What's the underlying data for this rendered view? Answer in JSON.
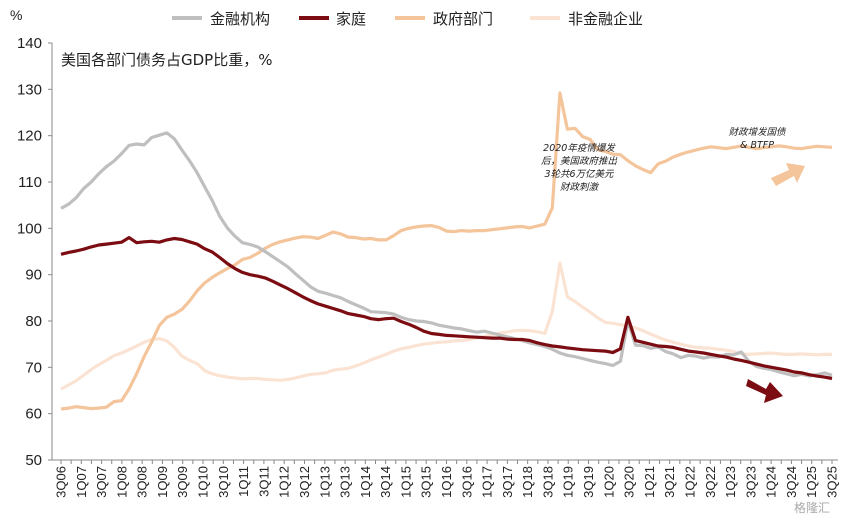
{
  "chart_data": {
    "type": "line",
    "title": "美国各部门债务占GDP比重，%",
    "ylabel": "%",
    "xlabel": "",
    "ylim": [
      50,
      140
    ],
    "yticks": [
      50,
      60,
      70,
      80,
      90,
      100,
      110,
      120,
      130,
      140
    ],
    "x_start": "3Q06",
    "x_end": "3Q25",
    "tick_labels": [
      "3Q06",
      "1Q07",
      "3Q07",
      "1Q08",
      "3Q08",
      "1Q09",
      "3Q09",
      "1Q10",
      "3Q10",
      "1Q11",
      "3Q11",
      "1Q12",
      "3Q12",
      "1Q13",
      "3Q13",
      "1Q14",
      "3Q14",
      "1Q15",
      "3Q15",
      "1Q16",
      "3Q16",
      "1Q17",
      "3Q17",
      "1Q18",
      "3Q18",
      "1Q19",
      "3Q19",
      "1Q20",
      "3Q20",
      "1Q21",
      "3Q21",
      "1Q22",
      "3Q22",
      "1Q23",
      "3Q23",
      "1Q24",
      "3Q24",
      "1Q25",
      "3Q25"
    ],
    "legend_position": "top",
    "grid": false,
    "series": [
      {
        "name": "金融机构",
        "color": "#bfbfbf",
        "values": [
          104.3,
          105.2,
          106.6,
          108.6,
          110.0,
          111.8,
          113.3,
          114.5,
          116.1,
          117.9,
          118.2,
          118.0,
          119.6,
          120.1,
          120.6,
          119.3,
          116.9,
          114.6,
          112.0,
          109.0,
          106.0,
          102.6,
          100.1,
          98.3,
          96.9,
          96.5,
          96.0,
          95.0,
          93.9,
          92.8,
          91.7,
          90.2,
          88.8,
          87.4,
          86.4,
          86.0,
          85.5,
          85.0,
          84.2,
          83.5,
          82.8,
          82.0,
          81.9,
          81.8,
          81.5,
          80.8,
          80.3,
          80.0,
          79.9,
          79.6,
          79.1,
          78.8,
          78.5,
          78.3,
          77.9,
          77.6,
          77.8,
          77.4,
          77.0,
          76.6,
          76.2,
          75.8,
          75.3,
          74.9,
          74.5,
          73.9,
          73.1,
          72.6,
          72.3,
          71.9,
          71.5,
          71.1,
          70.8,
          70.4,
          71.3,
          80.0,
          74.8,
          74.7,
          74.1,
          74.4,
          73.4,
          72.9,
          72.1,
          72.6,
          72.4,
          72.0,
          72.3,
          72.2,
          72.8,
          72.7,
          73.3,
          71.3,
          70.2,
          69.8,
          69.5,
          69.0,
          68.6,
          68.2,
          68.5,
          68.1,
          68.4,
          68.8,
          68.3
        ]
      },
      {
        "name": "家庭",
        "color": "#7b0c12",
        "values": [
          94.4,
          94.8,
          95.1,
          95.5,
          96.0,
          96.4,
          96.6,
          96.8,
          97.0,
          98.0,
          96.9,
          97.1,
          97.2,
          97.0,
          97.5,
          97.8,
          97.6,
          97.1,
          96.6,
          95.6,
          94.9,
          93.7,
          92.4,
          91.3,
          90.5,
          90.0,
          89.7,
          89.3,
          88.6,
          87.8,
          87.0,
          86.1,
          85.2,
          84.4,
          83.7,
          83.2,
          82.7,
          82.2,
          81.6,
          81.3,
          81.0,
          80.5,
          80.3,
          80.5,
          80.6,
          79.9,
          79.3,
          78.6,
          77.8,
          77.3,
          77.1,
          76.9,
          76.8,
          76.7,
          76.6,
          76.5,
          76.4,
          76.3,
          76.3,
          76.1,
          76.0,
          76.0,
          75.8,
          75.3,
          74.9,
          74.6,
          74.4,
          74.2,
          74.0,
          73.8,
          73.7,
          73.6,
          73.5,
          73.2,
          74.0,
          80.8,
          75.8,
          75.4,
          75.0,
          74.6,
          74.5,
          74.3,
          73.9,
          73.5,
          73.3,
          73.1,
          72.8,
          72.5,
          72.2,
          71.8,
          71.5,
          71.1,
          70.7,
          70.3,
          70.0,
          69.7,
          69.4,
          69.0,
          68.8,
          68.4,
          68.1,
          67.9,
          67.6
        ]
      },
      {
        "name": "政府部门",
        "color": "#f4c49b",
        "values": [
          61.0,
          61.2,
          61.5,
          61.3,
          61.1,
          61.2,
          61.4,
          62.6,
          62.8,
          65.3,
          68.6,
          72.3,
          75.5,
          79.0,
          80.8,
          81.5,
          82.5,
          84.3,
          86.5,
          88.2,
          89.4,
          90.4,
          91.3,
          92.1,
          93.3,
          93.7,
          94.6,
          95.7,
          96.5,
          97.1,
          97.5,
          97.9,
          98.2,
          98.1,
          97.8,
          98.5,
          99.2,
          98.8,
          98.1,
          98.0,
          97.7,
          97.8,
          97.5,
          97.5,
          98.4,
          99.5,
          100.0,
          100.3,
          100.5,
          100.6,
          100.2,
          99.4,
          99.3,
          99.5,
          99.4,
          99.5,
          99.5,
          99.7,
          99.9,
          100.1,
          100.3,
          100.4,
          100.1,
          100.5,
          100.9,
          104.4,
          129.2,
          121.4,
          121.6,
          119.8,
          119.2,
          117.0,
          116.6,
          116.0,
          115.9,
          114.6,
          113.5,
          112.7,
          112.0,
          113.9,
          114.5,
          115.4,
          116.0,
          116.5,
          116.9,
          117.3,
          117.6,
          117.4,
          117.2,
          117.5,
          117.8,
          117.5,
          117.2,
          117.4,
          117.6,
          117.8,
          117.6,
          117.3,
          117.2,
          117.5,
          117.7,
          117.6,
          117.5
        ]
      },
      {
        "name": "非金融企业",
        "color": "#fbe3d3",
        "values": [
          65.3,
          66.2,
          67.1,
          68.3,
          69.5,
          70.6,
          71.5,
          72.5,
          73.1,
          73.8,
          74.6,
          75.4,
          76.0,
          76.2,
          75.7,
          74.3,
          72.4,
          71.5,
          70.8,
          69.3,
          68.6,
          68.2,
          67.9,
          67.7,
          67.5,
          67.6,
          67.6,
          67.4,
          67.3,
          67.2,
          67.4,
          67.7,
          68.1,
          68.5,
          68.6,
          68.8,
          69.4,
          69.6,
          69.8,
          70.3,
          70.9,
          71.6,
          72.2,
          72.8,
          73.5,
          74.0,
          74.3,
          74.7,
          75.0,
          75.2,
          75.4,
          75.5,
          75.7,
          75.8,
          76.0,
          76.3,
          76.7,
          77.0,
          77.4,
          77.6,
          77.9,
          78.0,
          77.9,
          77.7,
          77.3,
          82.0,
          92.5,
          85.2,
          84.2,
          83.0,
          81.9,
          80.7,
          79.7,
          79.5,
          79.2,
          78.9,
          78.5,
          77.9,
          77.2,
          76.5,
          75.9,
          75.4,
          75.0,
          74.6,
          74.3,
          74.2,
          74.1,
          73.9,
          73.7,
          73.4,
          72.9,
          72.8,
          72.9,
          73.0,
          73.1,
          72.9,
          72.8,
          72.8,
          72.9,
          72.8,
          72.7,
          72.8,
          72.8
        ]
      }
    ],
    "annotations": [
      {
        "lines": [
          "2020年疫情爆发",
          "后，美国政府推出",
          "3轮共6万亿美元",
          "财政刺激"
        ]
      },
      {
        "lines": [
          "财政增发国债",
          "& BTFP"
        ]
      }
    ]
  },
  "watermark": "格隆汇"
}
